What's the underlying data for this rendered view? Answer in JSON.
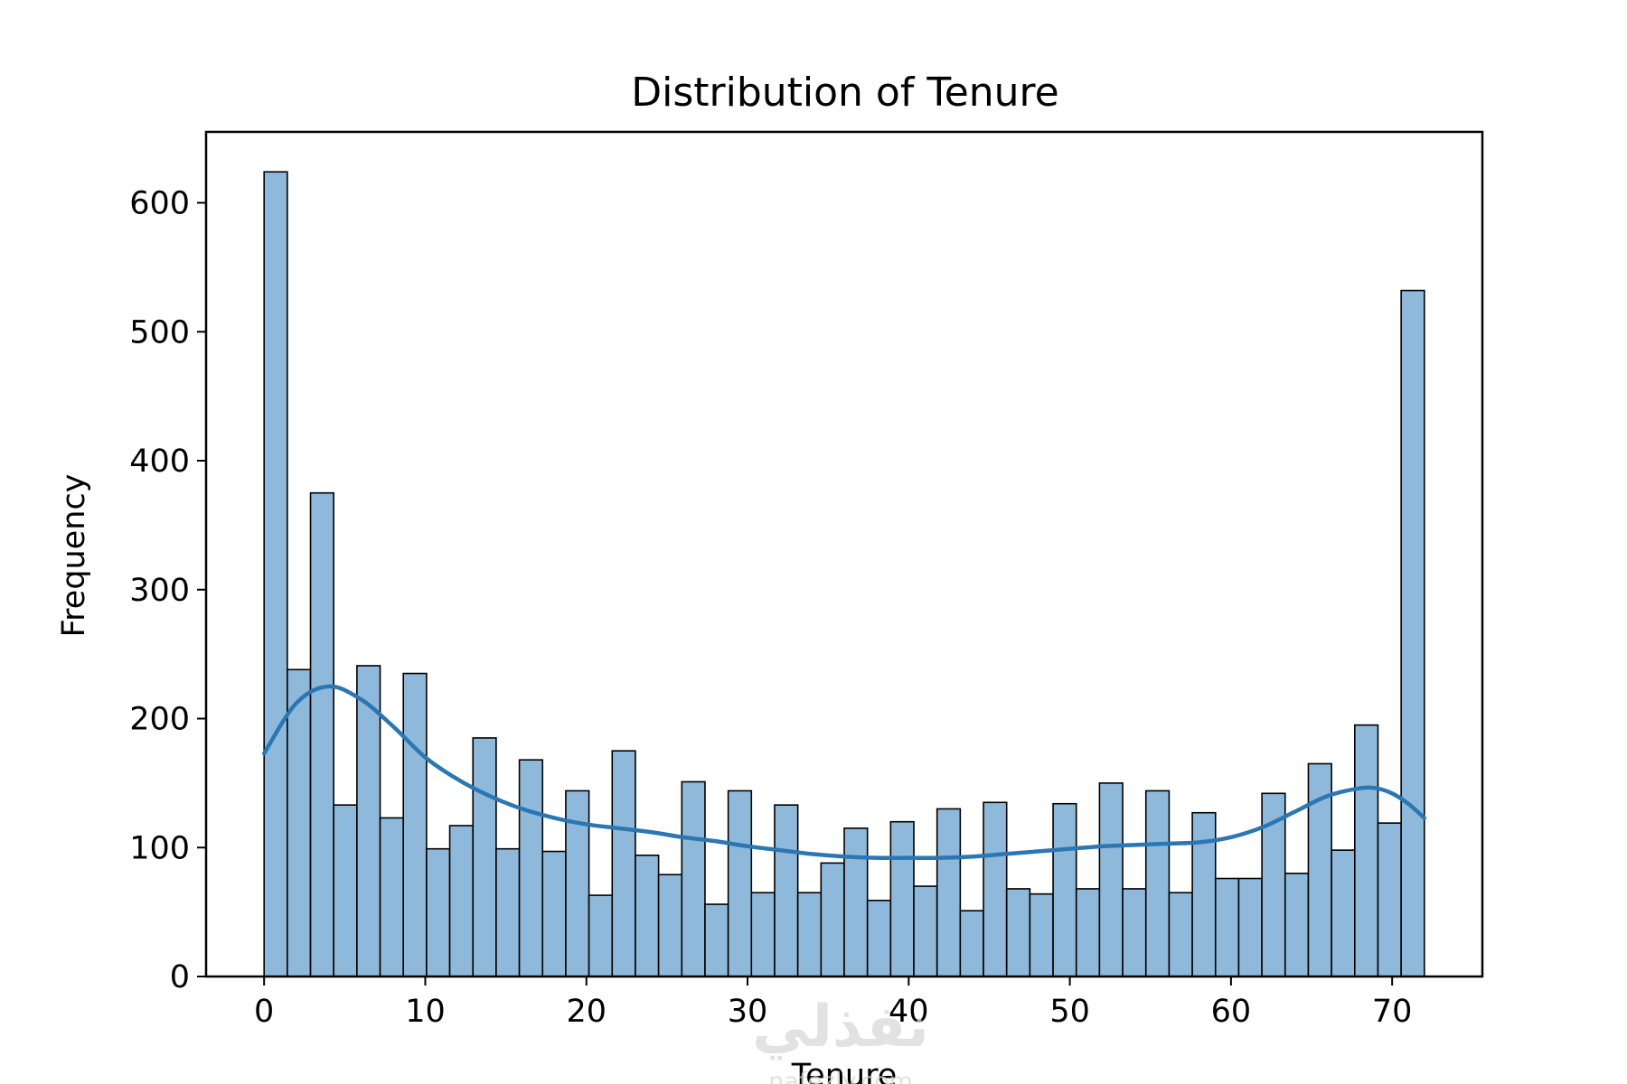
{
  "chart_data": {
    "type": "bar",
    "title": "Distribution of Tenure",
    "xlabel": "Tenure",
    "ylabel": "Frequency",
    "xlim": [
      -3.6,
      75.6
    ],
    "ylim": [
      0,
      655
    ],
    "xticks": [
      0,
      10,
      20,
      30,
      40,
      50,
      60,
      70
    ],
    "yticks": [
      0,
      100,
      200,
      300,
      400,
      500,
      600
    ],
    "grid": false,
    "bin_start": 0,
    "bin_width": 1.44,
    "values": [
      624,
      238,
      375,
      133,
      241,
      123,
      235,
      99,
      117,
      185,
      99,
      168,
      97,
      144,
      63,
      175,
      94,
      79,
      151,
      56,
      144,
      65,
      133,
      65,
      88,
      115,
      59,
      120,
      70,
      130,
      51,
      135,
      68,
      64,
      134,
      68,
      150,
      68,
      144,
      65,
      127,
      76,
      76,
      142,
      80,
      165,
      98,
      195,
      119,
      532
    ],
    "kde": {
      "x": [
        0,
        2,
        4,
        6,
        8,
        10,
        12,
        14,
        16,
        18,
        20,
        22,
        24,
        26,
        28,
        30,
        32,
        34,
        36,
        38,
        40,
        42,
        44,
        46,
        48,
        50,
        52,
        54,
        56,
        58,
        60,
        62,
        64,
        66,
        68,
        69,
        70,
        71,
        72
      ],
      "y": [
        173,
        212,
        225,
        215,
        194,
        170,
        153,
        140,
        130,
        123,
        118,
        115,
        112,
        108,
        105,
        101,
        98,
        95,
        93,
        92,
        92,
        92,
        93,
        95,
        97,
        99,
        101,
        102,
        103,
        104,
        108,
        116,
        128,
        140,
        146,
        146,
        142,
        134,
        123
      ]
    },
    "bar_fill": "#8fb9da",
    "bar_edge": "#000000",
    "kde_color": "#2a77b4"
  },
  "watermark": {
    "arabic": "نفذلي",
    "latin": "nafezly.com"
  }
}
